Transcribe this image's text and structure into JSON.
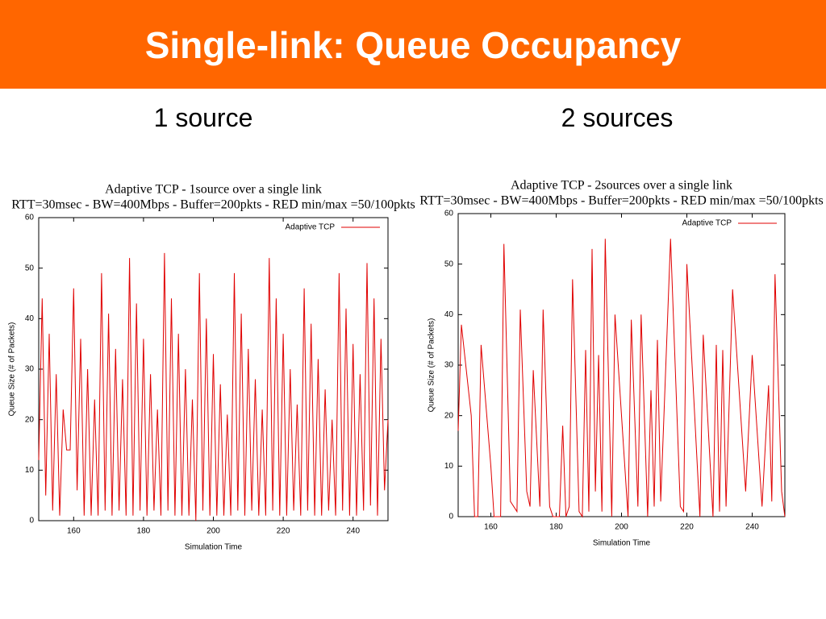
{
  "slide": {
    "title": "Single-link: Queue Occupancy",
    "captions": [
      "1 source",
      "2 sources"
    ]
  },
  "chart_data": [
    {
      "type": "line",
      "title": "Adaptive TCP - 1source over a single link",
      "subtitle": "RTT=30msec - BW=400Mbps - Buffer=200pkts - RED min/max =50/100pkts",
      "xlabel": "Simulation Time",
      "ylabel": "Queue Size (# of Packets)",
      "x": [
        150,
        151,
        152,
        153,
        154,
        155,
        156,
        157,
        158,
        159,
        160,
        161,
        162,
        163,
        164,
        165,
        166,
        167,
        168,
        169,
        170,
        171,
        172,
        173,
        174,
        175,
        176,
        177,
        178,
        179,
        180,
        181,
        182,
        183,
        184,
        185,
        186,
        187,
        188,
        189,
        190,
        191,
        192,
        193,
        194,
        195,
        196,
        197,
        198,
        199,
        200,
        201,
        202,
        203,
        204,
        205,
        206,
        207,
        208,
        209,
        210,
        211,
        212,
        213,
        214,
        215,
        216,
        217,
        218,
        219,
        220,
        221,
        222,
        223,
        224,
        225,
        226,
        227,
        228,
        229,
        230,
        231,
        232,
        233,
        234,
        235,
        236,
        237,
        238,
        239,
        240,
        241,
        242,
        243,
        244,
        245,
        246,
        247,
        248,
        249,
        250
      ],
      "series": [
        {
          "name": "Adaptive TCP",
          "color": "#e00000",
          "values": [
            12,
            44,
            5,
            37,
            2,
            29,
            1,
            22,
            14,
            14,
            46,
            6,
            36,
            1,
            30,
            1,
            24,
            1,
            49,
            2,
            41,
            1,
            34,
            2,
            28,
            1,
            52,
            1,
            43,
            2,
            36,
            1,
            29,
            2,
            22,
            1,
            53,
            2,
            44,
            1,
            37,
            1,
            30,
            1,
            24,
            0,
            49,
            2,
            40,
            1,
            33,
            1,
            27,
            1,
            21,
            1,
            49,
            2,
            41,
            1,
            34,
            2,
            28,
            1,
            22,
            1,
            52,
            2,
            44,
            1,
            37,
            1,
            30,
            2,
            23,
            1,
            46,
            2,
            39,
            1,
            32,
            1,
            26,
            2,
            20,
            1,
            49,
            2,
            42,
            1,
            35,
            1,
            29,
            2,
            51,
            3,
            44,
            1,
            36,
            6,
            20
          ]
        }
      ],
      "xlim": [
        150,
        250
      ],
      "ylim": [
        0,
        60
      ],
      "xticks": [
        160,
        180,
        200,
        220,
        240
      ],
      "yticks": [
        0,
        10,
        20,
        30,
        40,
        50,
        60
      ],
      "legend": "upper right",
      "grid": false
    },
    {
      "type": "line",
      "title": "Adaptive TCP - 2sources over a single link",
      "subtitle": "RTT=30msec - BW=400Mbps - Buffer=200pkts - RED min/max =50/100pkts",
      "xlabel": "Simulation Time",
      "ylabel": "Queue Size (# of Packets)",
      "x": [
        150,
        151,
        154,
        155,
        156,
        157,
        160,
        161,
        163,
        164,
        166,
        168,
        169,
        171,
        172,
        173,
        175,
        176,
        178,
        179,
        181,
        182,
        183,
        184,
        185,
        187,
        188,
        189,
        190,
        191,
        192,
        193,
        194,
        195,
        197,
        198,
        202,
        203,
        205,
        206,
        208,
        209,
        210,
        211,
        212,
        215,
        218,
        219,
        220,
        224,
        225,
        228,
        229,
        230,
        231,
        232,
        234,
        238,
        240,
        243,
        245,
        246,
        247,
        249,
        250
      ],
      "series": [
        {
          "name": "Adaptive TCP",
          "color": "#e00000",
          "values": [
            17,
            38,
            20,
            0,
            0,
            34,
            10,
            0,
            0,
            54,
            3,
            1,
            41,
            5,
            2,
            29,
            2,
            41,
            2,
            0,
            0,
            18,
            0,
            2,
            47,
            1,
            0,
            33,
            1,
            53,
            5,
            32,
            1,
            55,
            0,
            40,
            0,
            39,
            2,
            40,
            0,
            25,
            2,
            35,
            3,
            55,
            2,
            1,
            50,
            0,
            36,
            0,
            34,
            1,
            33,
            2,
            45,
            5,
            32,
            2,
            26,
            3,
            48,
            5,
            0
          ]
        }
      ],
      "xlim": [
        150,
        250
      ],
      "ylim": [
        0,
        60
      ],
      "xticks": [
        160,
        180,
        200,
        220,
        240
      ],
      "yticks": [
        0,
        10,
        20,
        30,
        40,
        50,
        60
      ],
      "legend": "upper right",
      "grid": false
    }
  ]
}
